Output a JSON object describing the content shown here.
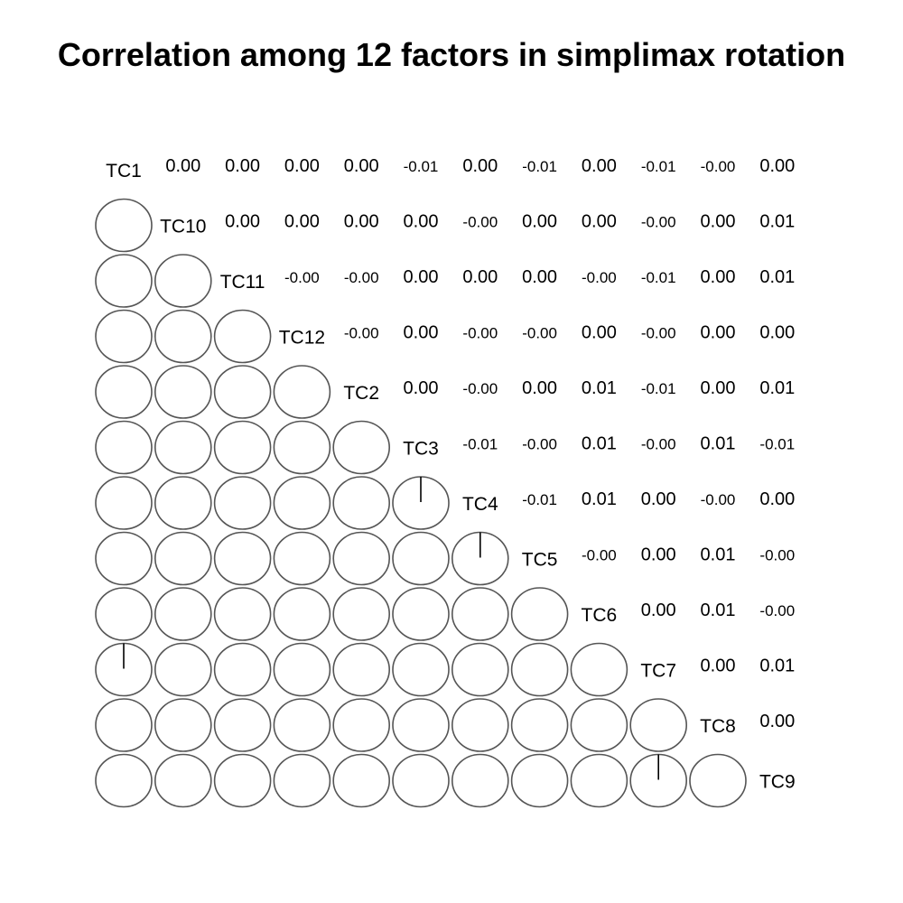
{
  "chart_data": {
    "type": "heatmap",
    "subtype": "correlation-ellipse-upper-numbers",
    "title": "Correlation among 12 factors in simplimax rotation",
    "variables": [
      "TC1",
      "TC10",
      "TC11",
      "TC12",
      "TC2",
      "TC3",
      "TC4",
      "TC5",
      "TC6",
      "TC7",
      "TC8",
      "TC9"
    ],
    "upper_labels": [
      [
        "0.00",
        "0.00",
        "0.00",
        "0.00",
        "-0.01",
        "0.00",
        "-0.01",
        "0.00",
        "-0.01",
        "-0.00",
        "0.00"
      ],
      [
        "0.00",
        "0.00",
        "0.00",
        "0.00",
        "-0.00",
        "0.00",
        "0.00",
        "-0.00",
        "0.00",
        "0.01"
      ],
      [
        "-0.00",
        "-0.00",
        "0.00",
        "0.00",
        "0.00",
        "-0.00",
        "-0.01",
        "0.00",
        "0.01"
      ],
      [
        "-0.00",
        "0.00",
        "-0.00",
        "-0.00",
        "0.00",
        "-0.00",
        "0.00",
        "0.00"
      ],
      [
        "0.00",
        "-0.00",
        "0.00",
        "0.01",
        "-0.01",
        "0.00",
        "0.01"
      ],
      [
        "-0.01",
        "-0.00",
        "0.01",
        "-0.00",
        "0.01",
        "-0.01"
      ],
      [
        "-0.01",
        "0.01",
        "0.00",
        "-0.00",
        "0.00"
      ],
      [
        "-0.00",
        "0.00",
        "0.01",
        "-0.00"
      ],
      [
        "0.00",
        "0.01",
        "-0.00"
      ],
      [
        "0.00",
        "0.01"
      ],
      [
        "0.00"
      ]
    ],
    "marked_cells": [
      {
        "row": "TC4",
        "col": "TC3"
      },
      {
        "row": "TC5",
        "col": "TC4"
      },
      {
        "row": "TC7",
        "col": "TC1"
      },
      {
        "row": "TC9",
        "col": "TC7"
      }
    ],
    "colors": {
      "circle_stroke": "#555555",
      "text": "#000000",
      "background": "#ffffff"
    }
  }
}
